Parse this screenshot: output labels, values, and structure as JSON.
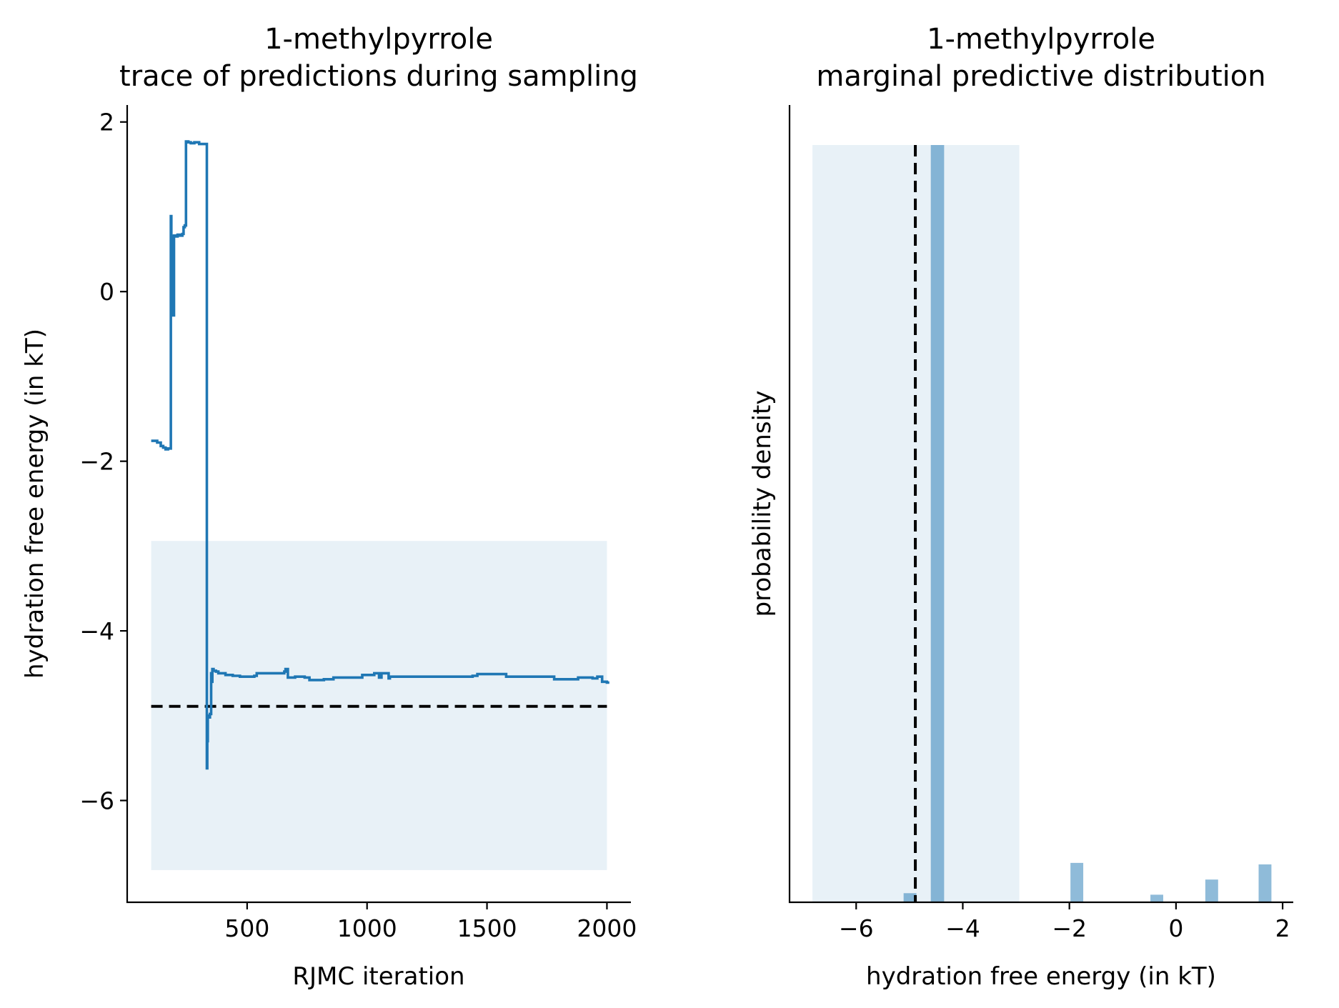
{
  "chart_data": [
    {
      "type": "line",
      "title_line1": "1-methylpyrrole",
      "title_line2": "trace of predictions during sampling",
      "xlabel": "RJMC iteration",
      "ylabel": "hydration free energy (in kT)",
      "xlim": [
        0,
        2100
      ],
      "ylim": [
        -7.2,
        2.2
      ],
      "xticks": [
        500,
        1000,
        1500,
        2000
      ],
      "xtick_labels": [
        "500",
        "1000",
        "1500",
        "2000"
      ],
      "yticks": [
        -6,
        -4,
        -2,
        0,
        2
      ],
      "ytick_labels": [
        "−6",
        "−4",
        "−2",
        "0",
        "2"
      ],
      "interval_band": {
        "x": [
          100,
          2000
        ],
        "y": [
          -6.82,
          -2.94
        ]
      },
      "reference_value": -4.89,
      "series": [
        {
          "color": "#1f77b4",
          "steps": [
            [
              100,
              -1.76
            ],
            [
              125,
              -1.78
            ],
            [
              140,
              -1.82
            ],
            [
              150,
              -1.84
            ],
            [
              160,
              -1.86
            ],
            [
              170,
              -1.85
            ],
            [
              180,
              -1.85
            ],
            [
              182,
              0.89
            ],
            [
              184,
              -0.1
            ],
            [
              186,
              0.65
            ],
            [
              188,
              -0.25
            ],
            [
              190,
              0.62
            ],
            [
              192,
              -0.28
            ],
            [
              195,
              0.66
            ],
            [
              200,
              0.65
            ],
            [
              210,
              0.67
            ],
            [
              220,
              0.66
            ],
            [
              230,
              0.68
            ],
            [
              235,
              0.76
            ],
            [
              240,
              0.78
            ],
            [
              245,
              1.77
            ],
            [
              255,
              1.76
            ],
            [
              265,
              1.75
            ],
            [
              280,
              1.76
            ],
            [
              300,
              1.74
            ],
            [
              330,
              1.74
            ],
            [
              332,
              -5.62
            ],
            [
              334,
              -5.3
            ],
            [
              336,
              -5.0
            ],
            [
              340,
              -5.02
            ],
            [
              345,
              -4.98
            ],
            [
              350,
              -4.5
            ],
            [
              352,
              -4.6
            ],
            [
              355,
              -4.45
            ],
            [
              360,
              -4.47
            ],
            [
              370,
              -4.48
            ],
            [
              380,
              -4.5
            ],
            [
              400,
              -4.5
            ],
            [
              410,
              -4.52
            ],
            [
              440,
              -4.53
            ],
            [
              470,
              -4.54
            ],
            [
              530,
              -4.53
            ],
            [
              540,
              -4.5
            ],
            [
              600,
              -4.5
            ],
            [
              655,
              -4.48
            ],
            [
              660,
              -4.45
            ],
            [
              670,
              -4.55
            ],
            [
              700,
              -4.54
            ],
            [
              740,
              -4.55
            ],
            [
              760,
              -4.58
            ],
            [
              820,
              -4.57
            ],
            [
              860,
              -4.55
            ],
            [
              920,
              -4.55
            ],
            [
              980,
              -4.52
            ],
            [
              1030,
              -4.5
            ],
            [
              1050,
              -4.55
            ],
            [
              1060,
              -4.5
            ],
            [
              1080,
              -4.5
            ],
            [
              1090,
              -4.56
            ],
            [
              1095,
              -4.54
            ],
            [
              1140,
              -4.54
            ],
            [
              1250,
              -4.54
            ],
            [
              1300,
              -4.54
            ],
            [
              1420,
              -4.54
            ],
            [
              1440,
              -4.53
            ],
            [
              1460,
              -4.51
            ],
            [
              1520,
              -4.51
            ],
            [
              1580,
              -4.54
            ],
            [
              1680,
              -4.54
            ],
            [
              1770,
              -4.54
            ],
            [
              1780,
              -4.57
            ],
            [
              1850,
              -4.57
            ],
            [
              1880,
              -4.55
            ],
            [
              1920,
              -4.55
            ],
            [
              1940,
              -4.56
            ],
            [
              1960,
              -4.54
            ],
            [
              1980,
              -4.6
            ],
            [
              2000,
              -4.61
            ],
            [
              2010,
              -4.61
            ]
          ]
        }
      ]
    },
    {
      "type": "bar",
      "title_line1": "1-methylpyrrole",
      "title_line2": "marginal predictive distribution",
      "xlabel": "hydration free energy (in kT)",
      "ylabel": "probability density",
      "xlim": [
        -7.25,
        2.2
      ],
      "xticks": [
        -6,
        -4,
        -2,
        0,
        2
      ],
      "xtick_labels": [
        "−6",
        "−4",
        "−2",
        "0",
        "2"
      ],
      "interval_band": {
        "x": [
          -6.82,
          -2.94
        ]
      },
      "reference_value": -4.89,
      "bar_color": "#1f77b4",
      "bins": [
        {
          "x0": -5.11,
          "x1": -4.87,
          "density": 1.2
        },
        {
          "x0": -4.6,
          "x1": -4.35,
          "density": 100
        },
        {
          "x0": -1.98,
          "x1": -1.74,
          "density": 5.2
        },
        {
          "x0": -0.48,
          "x1": -0.24,
          "density": 1.0
        },
        {
          "x0": 0.55,
          "x1": 0.79,
          "density": 3.0
        },
        {
          "x0": 1.55,
          "x1": 1.79,
          "density": 5.0
        }
      ],
      "density_max": 100
    }
  ]
}
